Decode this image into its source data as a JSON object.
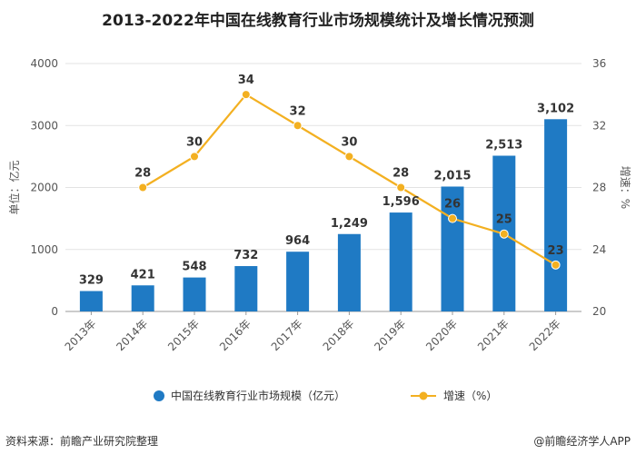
{
  "title": "2013-2022年中国在线教育行业市场规模统计及增长情况预测",
  "source": "资料来源：前瞻产业研究院整理",
  "credit": "@前瞻经济学人APP",
  "chart_data": {
    "type": "bar+line",
    "categories": [
      "2013年",
      "2014年",
      "2015年",
      "2016年",
      "2017年",
      "2018年",
      "2019年",
      "2020年",
      "2021年",
      "2022年"
    ],
    "series": [
      {
        "name": "中国在线教育行业市场规模（亿元）",
        "type": "bar",
        "axis": "left",
        "values": [
          329,
          421,
          548,
          732,
          964,
          1249,
          1596,
          2015,
          2513,
          3102
        ],
        "labels": [
          "329",
          "421",
          "548",
          "732",
          "964",
          "1,249",
          "1,596",
          "2,015",
          "2,513",
          "3,102"
        ]
      },
      {
        "name": "增速（%）",
        "type": "line",
        "axis": "right",
        "values": [
          null,
          28,
          30,
          34,
          32,
          30,
          28,
          26,
          25,
          23
        ],
        "labels": [
          "",
          "28",
          "30",
          "34",
          "32",
          "30",
          "28",
          "26",
          "25",
          "23"
        ]
      }
    ],
    "yleft": {
      "label": "单位：亿元",
      "ylim": [
        0,
        4000
      ],
      "ticks": [
        "0",
        "1000",
        "2000",
        "3000",
        "4000"
      ]
    },
    "yright": {
      "label": "增速：%",
      "ylim": [
        20,
        36
      ],
      "ticks": [
        "20",
        "24",
        "28",
        "32",
        "36"
      ]
    },
    "colors": {
      "bar": "#1f7ac4",
      "line": "#f3b021"
    }
  }
}
